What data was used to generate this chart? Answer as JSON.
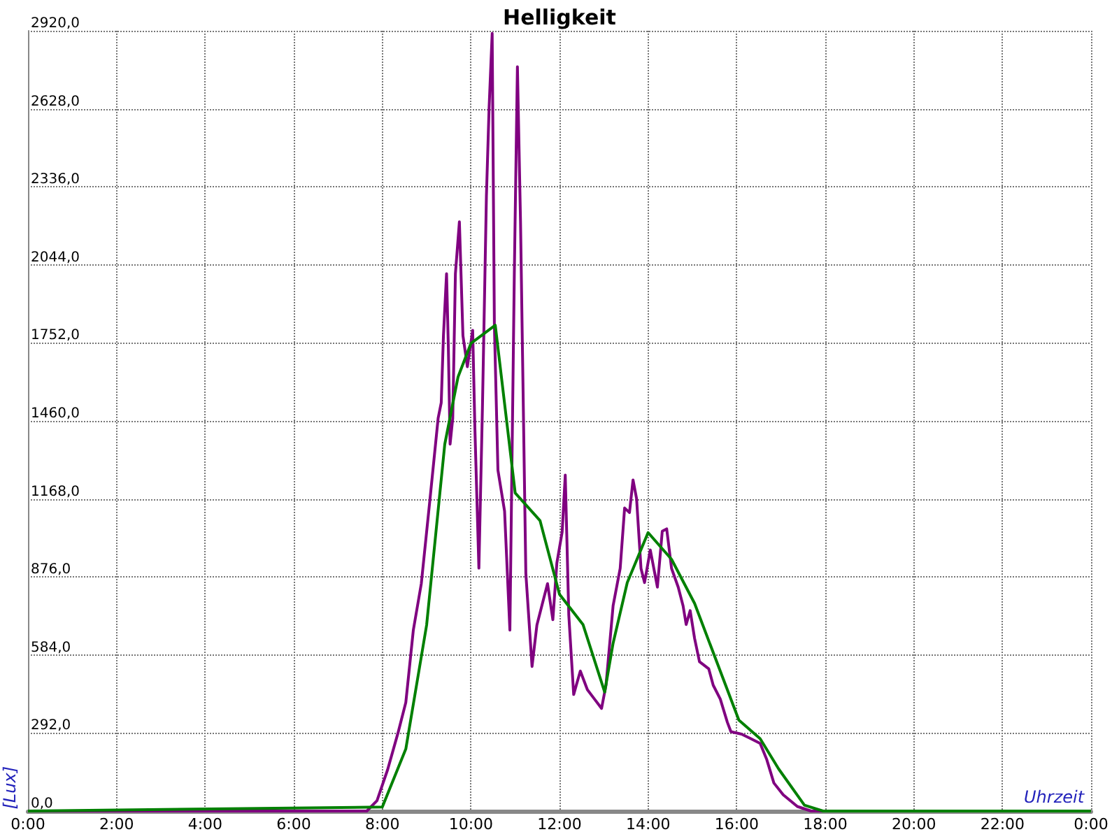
{
  "chart_data": {
    "type": "line",
    "title": "Helligkeit",
    "xlabel": "Uhrzeit",
    "ylabel": "[Lux]",
    "xlim": [
      0,
      24
    ],
    "xticks": [
      {
        "value": 0,
        "label": "0:00"
      },
      {
        "value": 2,
        "label": "2:00"
      },
      {
        "value": 4,
        "label": "4:00"
      },
      {
        "value": 6,
        "label": "6:00"
      },
      {
        "value": 8,
        "label": "8:00"
      },
      {
        "value": 10,
        "label": "10:00"
      },
      {
        "value": 12,
        "label": "12:00"
      },
      {
        "value": 14,
        "label": "14:00"
      },
      {
        "value": 16,
        "label": "16:00"
      },
      {
        "value": 18,
        "label": "18:00"
      },
      {
        "value": 20,
        "label": "20:00"
      },
      {
        "value": 22,
        "label": "22:00"
      },
      {
        "value": 24,
        "label": "0:00"
      }
    ],
    "ylim": [
      0,
      2920
    ],
    "yticks": [
      {
        "value": 0,
        "label": "0,0"
      },
      {
        "value": 292,
        "label": "292,0"
      },
      {
        "value": 584,
        "label": "584,0"
      },
      {
        "value": 876,
        "label": "876,0"
      },
      {
        "value": 1168,
        "label": "1168,0"
      },
      {
        "value": 1460,
        "label": "1460,0"
      },
      {
        "value": 1752,
        "label": "1752,0"
      },
      {
        "value": 2044,
        "label": "2044,0"
      },
      {
        "value": 2336,
        "label": "2336,0"
      },
      {
        "value": 2628,
        "label": "2628,0"
      },
      {
        "value": 2920,
        "label": "2920,0"
      }
    ],
    "grid": true,
    "marker": "none",
    "line_style": "solid",
    "series": [
      {
        "color": "#800080",
        "x": [
          0,
          7.65,
          7.88,
          8.12,
          8.35,
          8.53,
          8.7,
          8.88,
          9.09,
          9.26,
          9.33,
          9.38,
          9.45,
          9.49,
          9.53,
          9.59,
          9.65,
          9.74,
          9.82,
          9.92,
          10.04,
          10.09,
          10.18,
          10.26,
          10.35,
          10.41,
          10.48,
          10.53,
          10.61,
          10.76,
          10.88,
          10.98,
          11.05,
          11.12,
          11.24,
          11.38,
          11.49,
          11.61,
          11.73,
          11.85,
          11.94,
          12.06,
          12.13,
          12.21,
          12.32,
          12.47,
          12.63,
          12.79,
          12.95,
          13.05,
          13.21,
          13.37,
          13.47,
          13.58,
          13.66,
          13.74,
          13.84,
          13.92,
          14.05,
          14.21,
          14.32,
          14.42,
          14.53,
          14.68,
          14.79,
          14.86,
          14.95,
          15.05,
          15.16,
          15.37,
          15.47,
          15.63,
          15.79,
          15.87,
          16.11,
          16.32,
          16.53,
          16.68,
          16.84,
          17.05,
          17.37,
          17.68,
          24
        ],
        "values": [
          0,
          0,
          39,
          155,
          290,
          406,
          677,
          851,
          1190,
          1470,
          1528,
          1779,
          2011,
          1740,
          1373,
          1470,
          2011,
          2205,
          1779,
          1663,
          1799,
          1431,
          909,
          1508,
          2301,
          2630,
          2910,
          1818,
          1276,
          1122,
          677,
          2011,
          2785,
          2205,
          890,
          541,
          696,
          774,
          851,
          716,
          928,
          1044,
          1257,
          733,
          436,
          524,
          454,
          419,
          384,
          471,
          768,
          908,
          1134,
          1117,
          1239,
          1169,
          908,
          855,
          977,
          838,
          1047,
          1056,
          908,
          838,
          768,
          698,
          750,
          646,
          559,
          532,
          471,
          419,
          332,
          297,
          288,
          271,
          253,
          192,
          105,
          61,
          17,
          0,
          0
        ]
      },
      {
        "color": "#008000",
        "x": [
          0,
          8.0,
          8.53,
          9.0,
          9.41,
          9.71,
          10.0,
          10.55,
          11.0,
          11.56,
          12.0,
          12.53,
          13.02,
          13.21,
          13.53,
          14.0,
          14.53,
          15.05,
          16.05,
          16.53,
          16.95,
          17.53,
          17.95,
          24
        ],
        "values": [
          0,
          15,
          232,
          696,
          1373,
          1625,
          1750,
          1818,
          1190,
          1087,
          811,
          698,
          445,
          628,
          855,
          1042,
          942,
          777,
          340,
          271,
          157,
          22,
          0,
          0
        ]
      }
    ]
  }
}
